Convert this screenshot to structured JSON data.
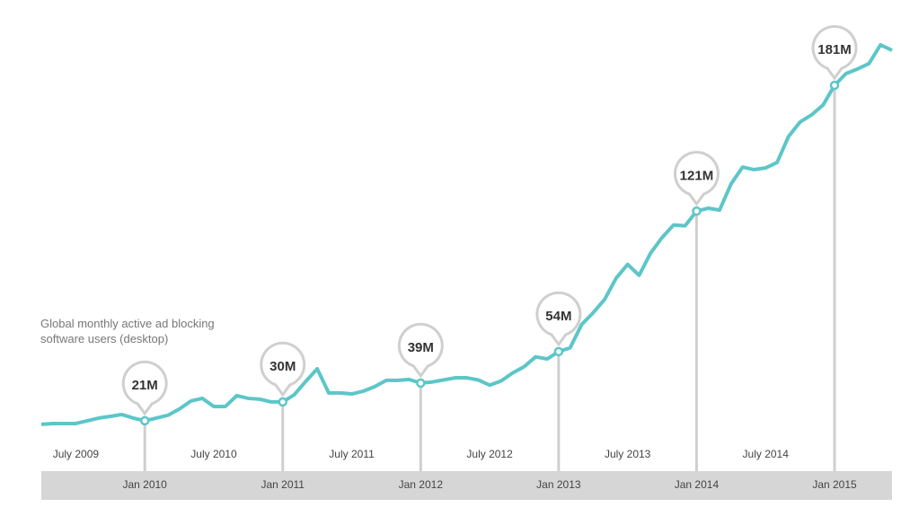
{
  "chart_data": {
    "type": "line",
    "annotation": "Global monthly active ad blocking software users (desktop)",
    "categories": [
      null,
      null,
      null,
      "July 2009",
      null,
      null,
      null,
      null,
      null,
      "Jan 2010",
      null,
      null,
      null,
      null,
      null,
      "July 2010",
      null,
      null,
      null,
      null,
      null,
      "Jan 2011",
      null,
      null,
      null,
      null,
      null,
      "July 2011",
      null,
      null,
      null,
      null,
      null,
      "Jan 2012",
      null,
      null,
      null,
      null,
      null,
      "July 2012",
      null,
      null,
      null,
      null,
      null,
      "Jan 2013",
      null,
      null,
      null,
      null,
      null,
      "July 2013",
      null,
      null,
      null,
      null,
      null,
      "Jan 2014",
      null,
      null,
      null,
      null,
      null,
      "July 2014",
      null,
      null,
      null,
      null,
      null,
      "Jan 2015",
      null,
      null,
      null,
      null,
      null
    ],
    "series": [
      {
        "color": "#5cc6c8",
        "values": [
          19.3,
          19.7,
          19.7,
          19.7,
          21,
          22.3,
          23.1,
          24,
          22.3,
          21,
          22.3,
          23.6,
          26.6,
          30.4,
          31.7,
          27.8,
          27.8,
          33,
          31.7,
          31.3,
          30,
          30,
          33.4,
          39.8,
          45.8,
          34.3,
          34.3,
          33.8,
          35.1,
          37.3,
          40.3,
          40.3,
          40.7,
          39,
          39.5,
          40.5,
          41.5,
          41.5,
          40.5,
          38,
          40,
          43.8,
          46.8,
          51.5,
          50.5,
          54,
          55.8,
          66.9,
          72.5,
          78.9,
          89,
          95.6,
          90.4,
          101,
          108.4,
          114.4,
          114,
          121,
          122.4,
          121.5,
          134,
          142,
          140.8,
          141.6,
          144.2,
          156.6,
          163.5,
          166.9,
          171.6,
          181,
          186.6,
          188.8,
          191.4,
          200.3,
          197.7
        ],
        "value_labels": [
          null,
          null,
          null,
          null,
          null,
          null,
          null,
          null,
          null,
          "21M",
          null,
          null,
          null,
          null,
          null,
          null,
          null,
          null,
          null,
          null,
          null,
          "30M",
          null,
          null,
          null,
          null,
          null,
          null,
          null,
          null,
          null,
          null,
          null,
          "39M",
          null,
          null,
          null,
          null,
          null,
          null,
          null,
          null,
          null,
          null,
          null,
          "54M",
          null,
          null,
          null,
          null,
          null,
          null,
          null,
          null,
          null,
          null,
          null,
          "121M",
          null,
          null,
          null,
          null,
          null,
          null,
          null,
          null,
          null,
          null,
          null,
          "181M",
          null,
          null,
          null,
          null,
          null
        ]
      }
    ]
  }
}
